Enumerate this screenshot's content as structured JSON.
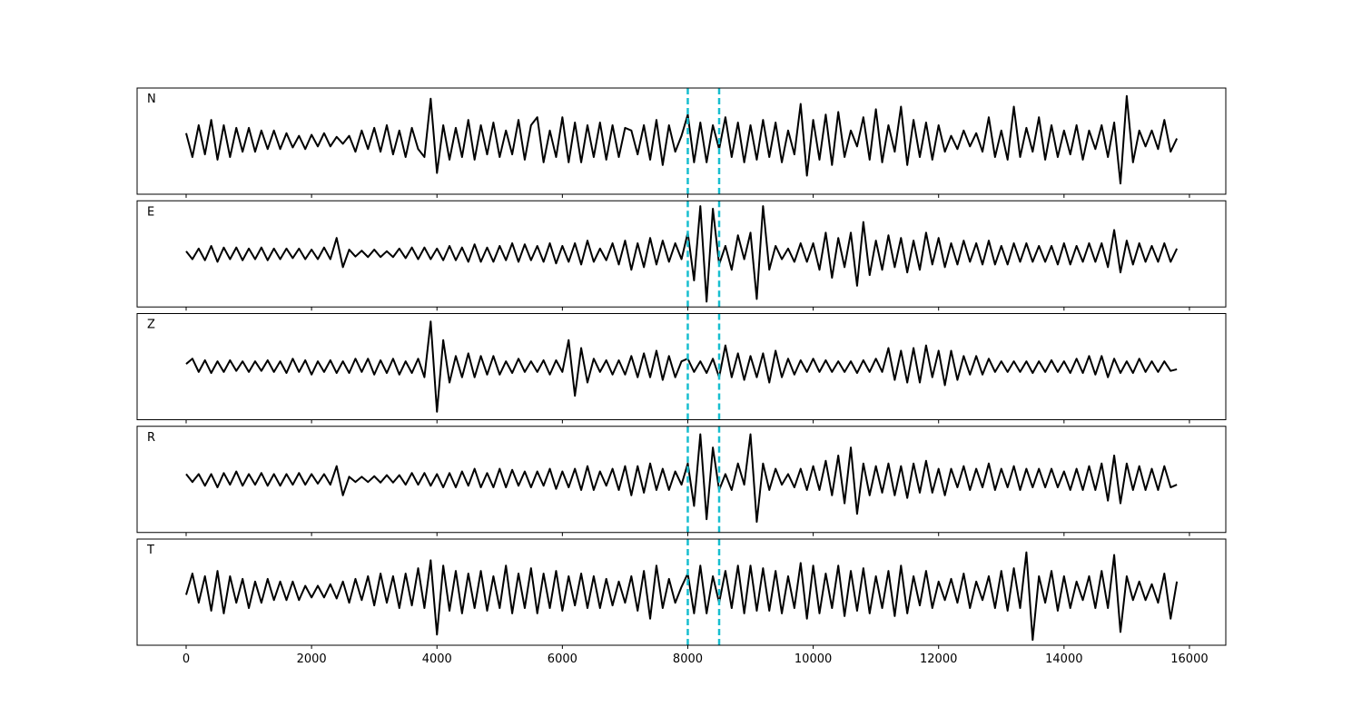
{
  "chart_data": {
    "type": "line",
    "layout": "panels",
    "x": [
      0,
      100,
      200,
      300,
      400,
      500,
      600,
      700,
      800,
      900,
      1000,
      1100,
      1200,
      1300,
      1400,
      1500,
      1600,
      1700,
      1800,
      1900,
      2000,
      2100,
      2200,
      2300,
      2400,
      2500,
      2600,
      2700,
      2800,
      2900,
      3000,
      3100,
      3200,
      3300,
      3400,
      3500,
      3600,
      3700,
      3800,
      3900,
      4000,
      4100,
      4200,
      4300,
      4400,
      4500,
      4600,
      4700,
      4800,
      4900,
      5000,
      5100,
      5200,
      5300,
      5400,
      5500,
      5600,
      5700,
      5800,
      5900,
      6000,
      6100,
      6200,
      6300,
      6400,
      6500,
      6600,
      6700,
      6800,
      6900,
      7000,
      7100,
      7200,
      7300,
      7400,
      7500,
      7600,
      7700,
      7800,
      7900,
      8000,
      8100,
      8200,
      8300,
      8400,
      8500,
      8600,
      8700,
      8800,
      8900,
      9000,
      9100,
      9200,
      9300,
      9400,
      9500,
      9600,
      9700,
      9800,
      9900,
      10000,
      10100,
      10200,
      10300,
      10400,
      10500,
      10600,
      10700,
      10800,
      10900,
      11000,
      11100,
      11200,
      11300,
      11400,
      11500,
      11600,
      11700,
      11800,
      11900,
      12000,
      12100,
      12200,
      12300,
      12400,
      12500,
      12600,
      12700,
      12800,
      12900,
      13000,
      13100,
      13200,
      13300,
      13400,
      13500,
      13600,
      13700,
      13800,
      13900,
      14000,
      14100,
      14200,
      14300,
      14400,
      14500,
      14600,
      14700,
      14800,
      14900,
      15000,
      15100,
      15200,
      15300,
      15400,
      15500,
      15600,
      15700,
      15800
    ],
    "xlim": [
      -782,
      16580
    ],
    "xticks": [
      0,
      2000,
      4000,
      6000,
      8000,
      10000,
      12000,
      14000,
      16000
    ],
    "ylim": [
      -1,
      1
    ],
    "vlines": [
      8000,
      8500
    ],
    "vline_color": "#17becf",
    "vline_style": "dashed",
    "series": [
      {
        "name": "N",
        "color": "#000000",
        "values": [
          0.15,
          -0.3,
          0.3,
          -0.25,
          0.4,
          -0.35,
          0.3,
          -0.3,
          0.25,
          -0.2,
          0.25,
          -0.2,
          0.2,
          -0.15,
          0.2,
          -0.15,
          0.15,
          -0.12,
          0.1,
          -0.15,
          0.12,
          -0.1,
          0.15,
          -0.1,
          0.08,
          -0.05,
          0.1,
          -0.2,
          0.2,
          -0.15,
          0.25,
          -0.2,
          0.3,
          -0.25,
          0.2,
          -0.3,
          0.25,
          -0.15,
          -0.3,
          0.8,
          -0.6,
          0.3,
          -0.35,
          0.25,
          -0.3,
          0.4,
          -0.35,
          0.3,
          -0.25,
          0.35,
          -0.3,
          0.2,
          -0.25,
          0.4,
          -0.35,
          0.3,
          0.45,
          -0.4,
          0.2,
          -0.3,
          0.45,
          -0.4,
          0.35,
          -0.4,
          0.3,
          -0.3,
          0.35,
          -0.35,
          0.3,
          -0.3,
          0.25,
          0.2,
          -0.25,
          0.3,
          -0.35,
          0.4,
          -0.45,
          0.3,
          -0.2,
          0.1,
          0.5,
          -0.4,
          0.35,
          -0.4,
          0.3,
          -0.15,
          0.45,
          -0.3,
          0.35,
          -0.4,
          0.3,
          -0.35,
          0.4,
          -0.3,
          0.35,
          -0.4,
          0.2,
          -0.25,
          0.7,
          -0.65,
          0.4,
          -0.35,
          0.5,
          -0.45,
          0.55,
          -0.3,
          0.2,
          -0.1,
          0.45,
          -0.35,
          0.6,
          -0.4,
          0.3,
          -0.2,
          0.65,
          -0.45,
          0.4,
          -0.3,
          0.35,
          -0.35,
          0.3,
          -0.2,
          0.1,
          -0.15,
          0.2,
          -0.1,
          0.15,
          -0.2,
          0.45,
          -0.3,
          0.2,
          -0.35,
          0.65,
          -0.3,
          0.25,
          -0.2,
          0.45,
          -0.35,
          0.3,
          -0.3,
          0.2,
          -0.25,
          0.3,
          -0.35,
          0.2,
          -0.15,
          0.3,
          -0.3,
          0.35,
          -0.8,
          0.85,
          -0.4,
          0.2,
          -0.1,
          0.2,
          -0.15,
          0.4,
          -0.2,
          0.05
        ]
      },
      {
        "name": "E",
        "color": "#000000",
        "values": [
          0.05,
          -0.1,
          0.1,
          -0.12,
          0.15,
          -0.15,
          0.12,
          -0.1,
          0.12,
          -0.12,
          0.1,
          -0.1,
          0.12,
          -0.12,
          0.1,
          -0.1,
          0.1,
          -0.08,
          0.1,
          -0.1,
          0.08,
          -0.1,
          0.12,
          -0.1,
          0.3,
          -0.25,
          0.08,
          -0.05,
          0.06,
          -0.06,
          0.08,
          -0.06,
          0.05,
          -0.06,
          0.1,
          -0.08,
          0.12,
          -0.1,
          0.12,
          -0.1,
          0.1,
          -0.12,
          0.15,
          -0.12,
          0.12,
          -0.15,
          0.18,
          -0.15,
          0.12,
          -0.15,
          0.15,
          -0.12,
          0.2,
          -0.15,
          0.18,
          -0.12,
          0.15,
          -0.15,
          0.2,
          -0.18,
          0.15,
          -0.15,
          0.2,
          -0.2,
          0.25,
          -0.15,
          0.1,
          -0.12,
          0.2,
          -0.2,
          0.25,
          -0.3,
          0.2,
          -0.25,
          0.3,
          -0.2,
          0.25,
          -0.15,
          0.2,
          -0.1,
          0.4,
          -0.5,
          0.9,
          -0.9,
          0.85,
          -0.2,
          0.15,
          -0.3,
          0.35,
          -0.1,
          0.4,
          -0.85,
          0.9,
          -0.3,
          0.15,
          -0.1,
          0.1,
          -0.15,
          0.2,
          -0.15,
          0.2,
          -0.3,
          0.4,
          -0.45,
          0.3,
          -0.25,
          0.4,
          -0.6,
          0.6,
          -0.4,
          0.25,
          -0.3,
          0.35,
          -0.25,
          0.3,
          -0.35,
          0.25,
          -0.3,
          0.4,
          -0.2,
          0.3,
          -0.25,
          0.2,
          -0.2,
          0.25,
          -0.15,
          0.2,
          -0.2,
          0.25,
          -0.2,
          0.15,
          -0.2,
          0.2,
          -0.15,
          0.2,
          -0.15,
          0.15,
          -0.15,
          0.15,
          -0.2,
          0.2,
          -0.2,
          0.15,
          -0.15,
          0.2,
          -0.15,
          0.2,
          -0.25,
          0.45,
          -0.35,
          0.25,
          -0.2,
          0.2,
          -0.15,
          0.15,
          -0.15,
          0.2,
          -0.15,
          0.1
        ]
      },
      {
        "name": "Z",
        "color": "#000000",
        "values": [
          0.05,
          0.15,
          -0.1,
          0.12,
          -0.12,
          0.1,
          -0.1,
          0.12,
          -0.08,
          0.1,
          -0.1,
          0.1,
          -0.08,
          0.12,
          -0.1,
          0.1,
          -0.12,
          0.15,
          -0.1,
          0.12,
          -0.15,
          0.1,
          -0.1,
          0.12,
          -0.12,
          0.1,
          -0.12,
          0.15,
          -0.1,
          0.15,
          -0.15,
          0.12,
          -0.12,
          0.15,
          -0.15,
          0.1,
          -0.12,
          0.15,
          -0.2,
          0.85,
          -0.85,
          0.5,
          -0.3,
          0.2,
          -0.2,
          0.25,
          -0.2,
          0.2,
          -0.15,
          0.2,
          -0.15,
          0.1,
          -0.12,
          0.15,
          -0.1,
          0.1,
          -0.1,
          0.12,
          -0.15,
          0.12,
          -0.1,
          0.5,
          -0.55,
          0.35,
          -0.3,
          0.15,
          -0.1,
          0.12,
          -0.15,
          0.12,
          -0.15,
          0.2,
          -0.2,
          0.25,
          -0.2,
          0.3,
          -0.25,
          0.2,
          -0.2,
          0.1,
          0.15,
          -0.1,
          0.1,
          -0.12,
          0.15,
          -0.2,
          0.4,
          -0.2,
          0.25,
          -0.25,
          0.2,
          -0.2,
          0.25,
          -0.3,
          0.3,
          -0.2,
          0.15,
          -0.15,
          0.12,
          -0.1,
          0.15,
          -0.1,
          0.12,
          -0.1,
          0.1,
          -0.1,
          0.1,
          -0.12,
          0.12,
          -0.1,
          0.15,
          -0.1,
          0.35,
          -0.25,
          0.3,
          -0.3,
          0.35,
          -0.3,
          0.4,
          -0.2,
          0.3,
          -0.35,
          0.3,
          -0.25,
          0.2,
          -0.15,
          0.2,
          -0.15,
          0.15,
          -0.1,
          0.1,
          -0.1,
          0.1,
          -0.1,
          0.1,
          -0.12,
          0.1,
          -0.1,
          0.12,
          -0.1,
          0.1,
          -0.12,
          0.15,
          -0.12,
          0.2,
          -0.15,
          0.2,
          -0.2,
          0.15,
          -0.12,
          0.1,
          -0.12,
          0.15,
          -0.1,
          0.1,
          -0.1,
          0.1,
          -0.08,
          -0.05
        ]
      },
      {
        "name": "R",
        "color": "#000000",
        "values": [
          0.1,
          -0.05,
          0.1,
          -0.12,
          0.1,
          -0.15,
          0.12,
          -0.1,
          0.15,
          -0.12,
          0.1,
          -0.1,
          0.12,
          -0.12,
          0.1,
          -0.12,
          0.1,
          -0.1,
          0.12,
          -0.1,
          0.1,
          -0.08,
          0.1,
          -0.1,
          0.25,
          -0.3,
          0.05,
          -0.05,
          0.05,
          -0.05,
          0.06,
          -0.06,
          0.08,
          -0.06,
          0.08,
          -0.1,
          0.12,
          -0.1,
          0.12,
          -0.12,
          0.1,
          -0.15,
          0.12,
          -0.15,
          0.15,
          -0.12,
          0.2,
          -0.15,
          0.12,
          -0.15,
          0.2,
          -0.15,
          0.18,
          -0.12,
          0.15,
          -0.15,
          0.15,
          -0.12,
          0.2,
          -0.18,
          0.15,
          -0.15,
          0.2,
          -0.2,
          0.25,
          -0.2,
          0.15,
          -0.12,
          0.2,
          -0.2,
          0.25,
          -0.3,
          0.25,
          -0.25,
          0.3,
          -0.2,
          0.2,
          -0.2,
          0.15,
          -0.1,
          0.3,
          -0.5,
          0.85,
          -0.75,
          0.6,
          -0.2,
          0.1,
          -0.2,
          0.3,
          -0.1,
          0.85,
          -0.8,
          0.3,
          -0.2,
          0.2,
          -0.1,
          0.1,
          -0.15,
          0.2,
          -0.2,
          0.25,
          -0.2,
          0.35,
          -0.3,
          0.45,
          -0.45,
          0.6,
          -0.65,
          0.3,
          -0.3,
          0.25,
          -0.25,
          0.3,
          -0.3,
          0.25,
          -0.35,
          0.3,
          -0.25,
          0.35,
          -0.25,
          0.2,
          -0.3,
          0.2,
          -0.15,
          0.25,
          -0.2,
          0.2,
          -0.15,
          0.3,
          -0.2,
          0.2,
          -0.15,
          0.25,
          -0.2,
          0.2,
          -0.15,
          0.2,
          -0.15,
          0.2,
          -0.15,
          0.15,
          -0.2,
          0.2,
          -0.2,
          0.25,
          -0.2,
          0.3,
          -0.4,
          0.45,
          -0.45,
          0.3,
          -0.2,
          0.25,
          -0.2,
          0.2,
          -0.2,
          0.25,
          -0.15,
          -0.1
        ]
      },
      {
        "name": "T",
        "color": "#000000",
        "values": [
          -0.05,
          0.35,
          -0.2,
          0.3,
          -0.35,
          0.4,
          -0.4,
          0.3,
          -0.2,
          0.25,
          -0.3,
          0.2,
          -0.2,
          0.25,
          -0.15,
          0.2,
          -0.15,
          0.2,
          -0.15,
          0.12,
          -0.1,
          0.12,
          -0.1,
          0.15,
          -0.12,
          0.2,
          -0.2,
          0.25,
          -0.15,
          0.3,
          -0.25,
          0.35,
          -0.2,
          0.3,
          -0.3,
          0.35,
          -0.25,
          0.45,
          -0.3,
          0.6,
          -0.8,
          0.5,
          -0.35,
          0.4,
          -0.4,
          0.35,
          -0.3,
          0.4,
          -0.35,
          0.3,
          -0.3,
          0.5,
          -0.4,
          0.35,
          -0.3,
          0.45,
          -0.4,
          0.35,
          -0.3,
          0.4,
          -0.35,
          0.3,
          -0.25,
          0.35,
          -0.3,
          0.3,
          -0.3,
          0.25,
          -0.25,
          0.2,
          -0.2,
          0.3,
          -0.35,
          0.4,
          -0.5,
          0.5,
          -0.3,
          0.25,
          -0.2,
          0.1,
          0.35,
          -0.4,
          0.5,
          -0.4,
          0.3,
          -0.2,
          0.4,
          -0.3,
          0.5,
          -0.4,
          0.5,
          -0.35,
          0.45,
          -0.35,
          0.4,
          -0.4,
          0.3,
          -0.3,
          0.55,
          -0.5,
          0.5,
          -0.4,
          0.35,
          -0.3,
          0.5,
          -0.45,
          0.4,
          -0.35,
          0.45,
          -0.4,
          0.3,
          -0.3,
          0.4,
          -0.45,
          0.5,
          -0.4,
          0.3,
          -0.25,
          0.4,
          -0.3,
          0.2,
          -0.15,
          0.25,
          -0.2,
          0.35,
          -0.3,
          0.2,
          -0.15,
          0.3,
          -0.3,
          0.4,
          -0.35,
          0.45,
          -0.3,
          0.75,
          -0.9,
          0.3,
          -0.2,
          0.4,
          -0.35,
          0.3,
          -0.3,
          0.2,
          -0.15,
          0.3,
          -0.3,
          0.4,
          -0.3,
          0.7,
          -0.75,
          0.3,
          -0.15,
          0.2,
          -0.15,
          0.15,
          -0.2,
          0.35,
          -0.5,
          0.2
        ]
      }
    ]
  }
}
